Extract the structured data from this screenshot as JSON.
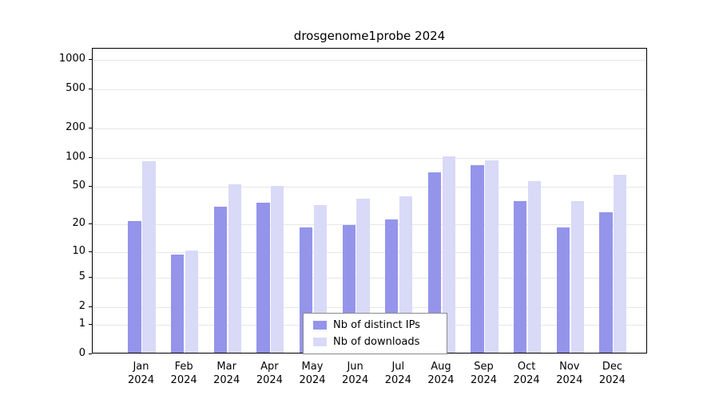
{
  "page": {
    "background": "#ffffff"
  },
  "chart_data": {
    "type": "bar",
    "title": "drosgenome1probe 2024",
    "categories": [
      "Jan",
      "Feb",
      "Mar",
      "Apr",
      "May",
      "Jun",
      "Jul",
      "Aug",
      "Sep",
      "Oct",
      "Nov",
      "Dec"
    ],
    "x_sub_label": "2024",
    "series": [
      {
        "name": "Nb of distinct IPs",
        "color": "#9494eb",
        "values": [
          21,
          9,
          30,
          33,
          18,
          19,
          22,
          68,
          80,
          34,
          18,
          26
        ]
      },
      {
        "name": "Nb of downloads",
        "color": "#d9d9f8",
        "values": [
          89,
          10,
          51,
          49,
          31,
          36,
          38,
          100,
          91,
          55,
          34,
          64
        ]
      }
    ],
    "y_ticks": [
      0,
      1,
      2,
      5,
      10,
      20,
      50,
      100,
      200,
      500,
      1000
    ],
    "y_scale": "pseudo-log (log10(value+1))",
    "ylim": [
      0,
      1300
    ],
    "xlabel": "",
    "ylabel": "",
    "grid": true,
    "grid_color": "#e6e6e6",
    "legend_position": "bottom-center"
  }
}
